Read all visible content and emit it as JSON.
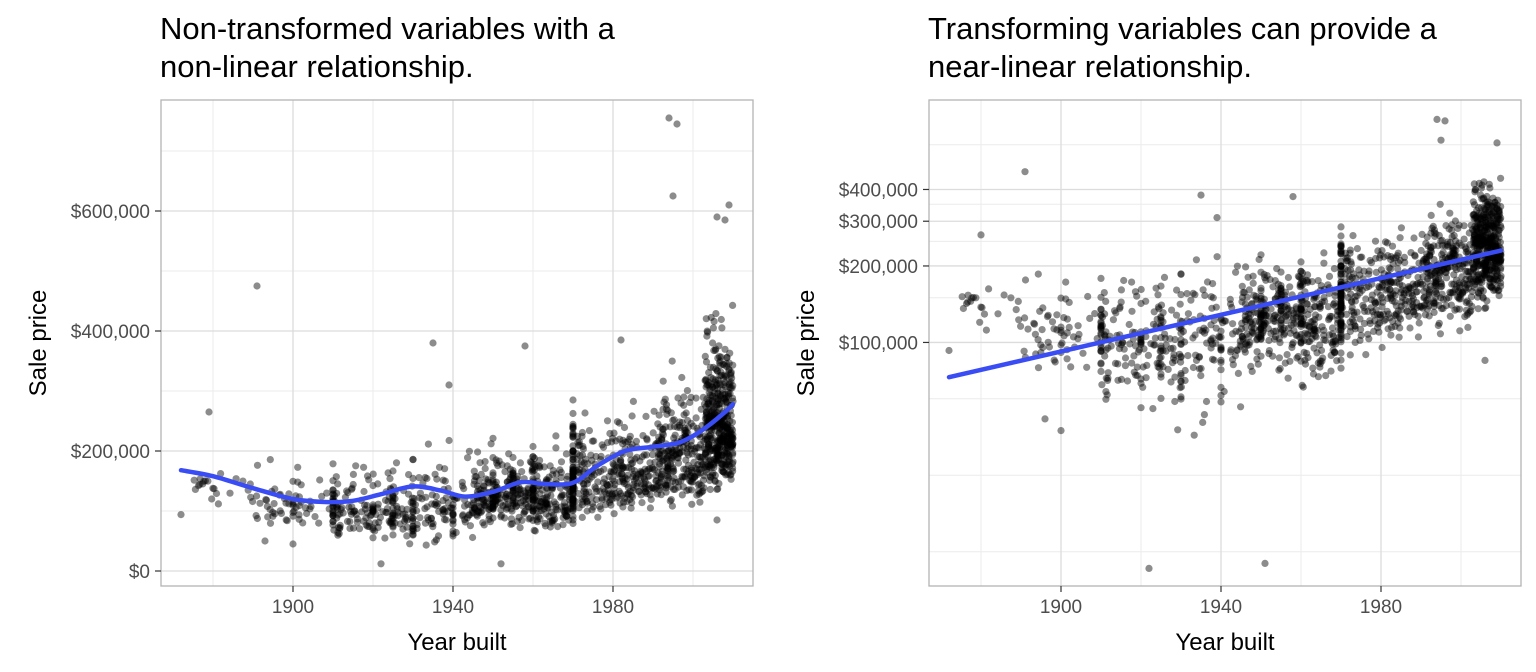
{
  "chart_data": [
    {
      "type": "scatter",
      "title": "Non-transformed variables with a non-linear relationship.",
      "title_lines": [
        "Non-transformed variables with a",
        "non-linear relationship."
      ],
      "xlabel": "Year built",
      "ylabel": "Sale price",
      "xlim": [
        1867,
        2015
      ],
      "ylim": [
        -25000,
        785000
      ],
      "y_scale": "linear",
      "x_ticks": [
        1900,
        1940,
        1980
      ],
      "x_tick_labels": [
        "1900",
        "1940",
        "1980"
      ],
      "y_ticks": [
        0,
        200000,
        400000,
        600000
      ],
      "y_tick_labels": [
        "$0",
        "$200,000",
        "$400,000",
        "$600,000"
      ],
      "grid": true,
      "point_color": "#000000",
      "point_opacity": 0.45,
      "line_color": "#3a4df4",
      "highlight_points": [
        {
          "x": 1872,
          "y": 94000
        },
        {
          "x": 1879,
          "y": 265000
        },
        {
          "x": 1891,
          "y": 475000
        },
        {
          "x": 1893,
          "y": 50000
        },
        {
          "x": 1900,
          "y": 45000
        },
        {
          "x": 1922,
          "y": 12000
        },
        {
          "x": 1935,
          "y": 380000
        },
        {
          "x": 1939,
          "y": 310000
        },
        {
          "x": 1952,
          "y": 12000
        },
        {
          "x": 1958,
          "y": 375000
        },
        {
          "x": 1982,
          "y": 385000
        },
        {
          "x": 1994,
          "y": 755000
        },
        {
          "x": 1995,
          "y": 625000
        },
        {
          "x": 1996,
          "y": 745000
        },
        {
          "x": 2006,
          "y": 85000
        },
        {
          "x": 2006,
          "y": 590000
        },
        {
          "x": 2008,
          "y": 585000
        },
        {
          "x": 2009,
          "y": 610000
        }
      ],
      "cloud_segments": [
        {
          "x_range": [
            1875,
            1890
          ],
          "count": 22,
          "y_low": 80000,
          "y_high": 200000
        },
        {
          "x_range": [
            1890,
            1910
          ],
          "count": 70,
          "y_low": 60000,
          "y_high": 210000
        },
        {
          "x_range": [
            1910,
            1930
          ],
          "count": 170,
          "y_low": 40000,
          "y_high": 250000
        },
        {
          "x_range": [
            1930,
            1945
          ],
          "count": 110,
          "y_low": 40000,
          "y_high": 260000
        },
        {
          "x_range": [
            1945,
            1970
          ],
          "count": 420,
          "y_low": 60000,
          "y_high": 260000
        },
        {
          "x_range": [
            1970,
            1990
          ],
          "count": 320,
          "y_low": 80000,
          "y_high": 320000
        },
        {
          "x_range": [
            1990,
            2003
          ],
          "count": 260,
          "y_low": 100000,
          "y_high": 380000
        },
        {
          "x_range": [
            2003,
            2010
          ],
          "count": 420,
          "y_low": 120000,
          "y_high": 480000
        }
      ],
      "smooth_line": {
        "x": [
          1872,
          1880,
          1890,
          1900,
          1908,
          1915,
          1922,
          1930,
          1937,
          1943,
          1950,
          1957,
          1963,
          1970,
          1976,
          1983,
          1990,
          1996,
          2000,
          2004,
          2008,
          2010
        ],
        "y": [
          168000,
          158000,
          138000,
          120000,
          115000,
          117000,
          128000,
          141000,
          134000,
          124000,
          132000,
          148000,
          145000,
          147000,
          175000,
          200000,
          207000,
          213000,
          225000,
          243000,
          265000,
          278000
        ]
      }
    },
    {
      "type": "scatter",
      "title": "Transforming variables can provide a near-linear relationship.",
      "title_lines": [
        "Transforming variables can provide a",
        "near-linear relationship."
      ],
      "xlabel": "Year built",
      "ylabel": "Sale price",
      "xlim": [
        1867,
        2015
      ],
      "ylim": [
        11000,
        900000
      ],
      "y_scale": "log",
      "x_ticks": [
        1900,
        1940,
        1980
      ],
      "x_tick_labels": [
        "1900",
        "1940",
        "1980"
      ],
      "y_ticks": [
        100000,
        200000,
        300000,
        400000
      ],
      "y_tick_labels": [
        "$100,000",
        "$200,000",
        "$300,000",
        "$400,000"
      ],
      "minor_y_grid": [
        15000,
        30000,
        60000,
        150000,
        250000,
        350000,
        600000
      ],
      "grid": true,
      "point_color": "#000000",
      "point_opacity": 0.45,
      "line_color": "#3a4df4",
      "highlight_points": [
        {
          "x": 1872,
          "y": 93000
        },
        {
          "x": 1880,
          "y": 265000
        },
        {
          "x": 1891,
          "y": 470000
        },
        {
          "x": 1896,
          "y": 50000
        },
        {
          "x": 1900,
          "y": 45000
        },
        {
          "x": 1922,
          "y": 12900
        },
        {
          "x": 1935,
          "y": 380000
        },
        {
          "x": 1939,
          "y": 310000
        },
        {
          "x": 1951,
          "y": 13500
        },
        {
          "x": 1958,
          "y": 375000
        },
        {
          "x": 1994,
          "y": 755000
        },
        {
          "x": 1995,
          "y": 625000
        },
        {
          "x": 1996,
          "y": 745000
        },
        {
          "x": 2006,
          "y": 85000
        },
        {
          "x": 2009,
          "y": 610000
        }
      ],
      "cloud_segments": [
        {
          "x_range": [
            1875,
            1890
          ],
          "count": 22,
          "y_low": 80000,
          "y_high": 200000
        },
        {
          "x_range": [
            1890,
            1910
          ],
          "count": 70,
          "y_low": 60000,
          "y_high": 210000
        },
        {
          "x_range": [
            1910,
            1930
          ],
          "count": 170,
          "y_low": 40000,
          "y_high": 250000
        },
        {
          "x_range": [
            1930,
            1945
          ],
          "count": 110,
          "y_low": 40000,
          "y_high": 260000
        },
        {
          "x_range": [
            1945,
            1970
          ],
          "count": 420,
          "y_low": 60000,
          "y_high": 260000
        },
        {
          "x_range": [
            1970,
            1990
          ],
          "count": 320,
          "y_low": 80000,
          "y_high": 320000
        },
        {
          "x_range": [
            1990,
            2003
          ],
          "count": 260,
          "y_low": 100000,
          "y_high": 380000
        },
        {
          "x_range": [
            2003,
            2010
          ],
          "count": 420,
          "y_low": 120000,
          "y_high": 480000
        }
      ],
      "smooth_line": {
        "x": [
          1872,
          2010
        ],
        "y": [
          73000,
          230000
        ]
      }
    }
  ]
}
